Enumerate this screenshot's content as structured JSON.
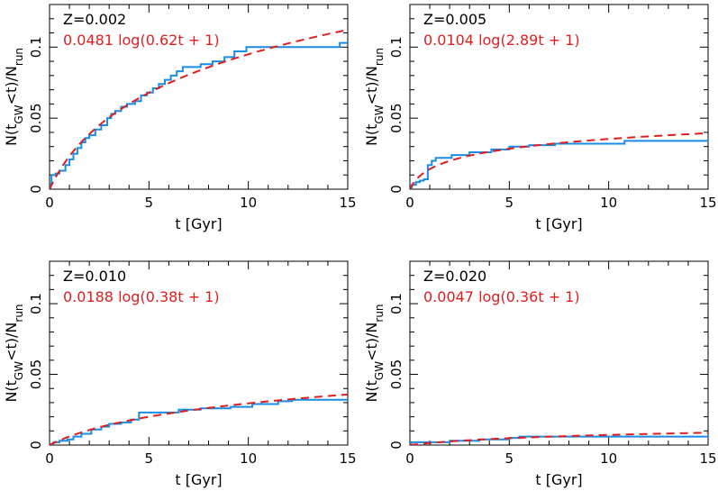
{
  "colors": {
    "step": "#1a8ce6",
    "fit": "#e01e1e",
    "axis": "#000000"
  },
  "x_axis_label": {
    "pre": "t ",
    "post": "[Gyr]"
  },
  "y_axis_label": {
    "n": "N(t",
    "gw": "GW",
    "lt": "<t)/N",
    "run": "run"
  },
  "chart_data": [
    {
      "type": "line",
      "panel_label": "Z=0.002",
      "fit_label": "0.0481 log(0.62t + 1)",
      "fit": {
        "a": 0.0481,
        "b": 0.62
      },
      "xlim": [
        0,
        15
      ],
      "ylim": [
        0,
        0.13
      ],
      "xticks": [
        0,
        5,
        10,
        15
      ],
      "yticks": [
        0,
        0.05,
        0.1
      ],
      "xtick_labels": [
        "0",
        "5",
        "10",
        "15"
      ],
      "ytick_labels": [
        "0",
        "0.05",
        "0.1"
      ],
      "step_series": [
        [
          0,
          0
        ],
        [
          0.05,
          0.004
        ],
        [
          0.1,
          0.01
        ],
        [
          0.3,
          0.011
        ],
        [
          0.5,
          0.013
        ],
        [
          0.8,
          0.017
        ],
        [
          1.0,
          0.021
        ],
        [
          1.2,
          0.025
        ],
        [
          1.4,
          0.029
        ],
        [
          1.6,
          0.033
        ],
        [
          1.8,
          0.036
        ],
        [
          2.0,
          0.038
        ],
        [
          2.3,
          0.042
        ],
        [
          2.6,
          0.045
        ],
        [
          2.9,
          0.05
        ],
        [
          3.1,
          0.053
        ],
        [
          3.3,
          0.055
        ],
        [
          3.6,
          0.058
        ],
        [
          3.9,
          0.06
        ],
        [
          4.3,
          0.062
        ],
        [
          4.6,
          0.066
        ],
        [
          4.9,
          0.068
        ],
        [
          5.2,
          0.071
        ],
        [
          5.5,
          0.074
        ],
        [
          5.8,
          0.077
        ],
        [
          6.1,
          0.08
        ],
        [
          6.4,
          0.083
        ],
        [
          6.7,
          0.086
        ],
        [
          7.6,
          0.088
        ],
        [
          8.2,
          0.09
        ],
        [
          8.8,
          0.093
        ],
        [
          9.3,
          0.097
        ],
        [
          9.9,
          0.1
        ],
        [
          12.0,
          0.1
        ],
        [
          14.6,
          0.103
        ],
        [
          15,
          0.103
        ]
      ]
    },
    {
      "type": "line",
      "panel_label": "Z=0.005",
      "fit_label": "0.0104 log(2.89t + 1)",
      "fit": {
        "a": 0.0104,
        "b": 2.89
      },
      "xlim": [
        0,
        15
      ],
      "ylim": [
        0,
        0.13
      ],
      "xticks": [
        0,
        5,
        10,
        15
      ],
      "yticks": [
        0,
        0.05,
        0.1
      ],
      "xtick_labels": [
        "0",
        "5",
        "10",
        "15"
      ],
      "ytick_labels": [
        "0",
        "0.05",
        "0.1"
      ],
      "step_series": [
        [
          0,
          0
        ],
        [
          0.1,
          0.003
        ],
        [
          0.3,
          0.005
        ],
        [
          0.5,
          0.006
        ],
        [
          0.7,
          0.007
        ],
        [
          0.9,
          0.017
        ],
        [
          1.1,
          0.02
        ],
        [
          1.3,
          0.022
        ],
        [
          2.1,
          0.024
        ],
        [
          3.0,
          0.026
        ],
        [
          4.1,
          0.028
        ],
        [
          5.0,
          0.03
        ],
        [
          6.0,
          0.031
        ],
        [
          7.3,
          0.032
        ],
        [
          10.8,
          0.034
        ],
        [
          15,
          0.034
        ]
      ]
    },
    {
      "type": "line",
      "panel_label": "Z=0.010",
      "fit_label": "0.0188 log(0.38t + 1)",
      "fit": {
        "a": 0.0188,
        "b": 0.38
      },
      "xlim": [
        0,
        15
      ],
      "ylim": [
        0,
        0.13
      ],
      "xticks": [
        0,
        5,
        10,
        15
      ],
      "yticks": [
        0,
        0.05,
        0.1
      ],
      "xtick_labels": [
        "0",
        "5",
        "10",
        "15"
      ],
      "ytick_labels": [
        "0",
        "0.05",
        "0.1"
      ],
      "step_series": [
        [
          0,
          0
        ],
        [
          0.2,
          0.002
        ],
        [
          0.5,
          0.003
        ],
        [
          0.9,
          0.004
        ],
        [
          1.2,
          0.006
        ],
        [
          1.6,
          0.008
        ],
        [
          2.1,
          0.011
        ],
        [
          2.6,
          0.013
        ],
        [
          3.0,
          0.015
        ],
        [
          3.6,
          0.016
        ],
        [
          4.1,
          0.018
        ],
        [
          4.5,
          0.023
        ],
        [
          6.5,
          0.025
        ],
        [
          7.6,
          0.026
        ],
        [
          9.1,
          0.027
        ],
        [
          10.2,
          0.029
        ],
        [
          11.5,
          0.031
        ],
        [
          12.2,
          0.032
        ],
        [
          15,
          0.032
        ]
      ]
    },
    {
      "type": "line",
      "panel_label": "Z=0.020",
      "fit_label": "0.0047 log(0.36t + 1)",
      "fit": {
        "a": 0.0047,
        "b": 0.36
      },
      "xlim": [
        0,
        15
      ],
      "ylim": [
        0,
        0.13
      ],
      "xticks": [
        0,
        5,
        10,
        15
      ],
      "yticks": [
        0,
        0.05,
        0.1
      ],
      "xtick_labels": [
        "0",
        "5",
        "10",
        "15"
      ],
      "ytick_labels": [
        "0",
        "0.05",
        "0.1"
      ],
      "step_series": [
        [
          0,
          0
        ],
        [
          0.05,
          0.002
        ],
        [
          2.0,
          0.003
        ],
        [
          3.5,
          0.004
        ],
        [
          5.0,
          0.005
        ],
        [
          5.5,
          0.006
        ],
        [
          15,
          0.006
        ]
      ]
    }
  ]
}
